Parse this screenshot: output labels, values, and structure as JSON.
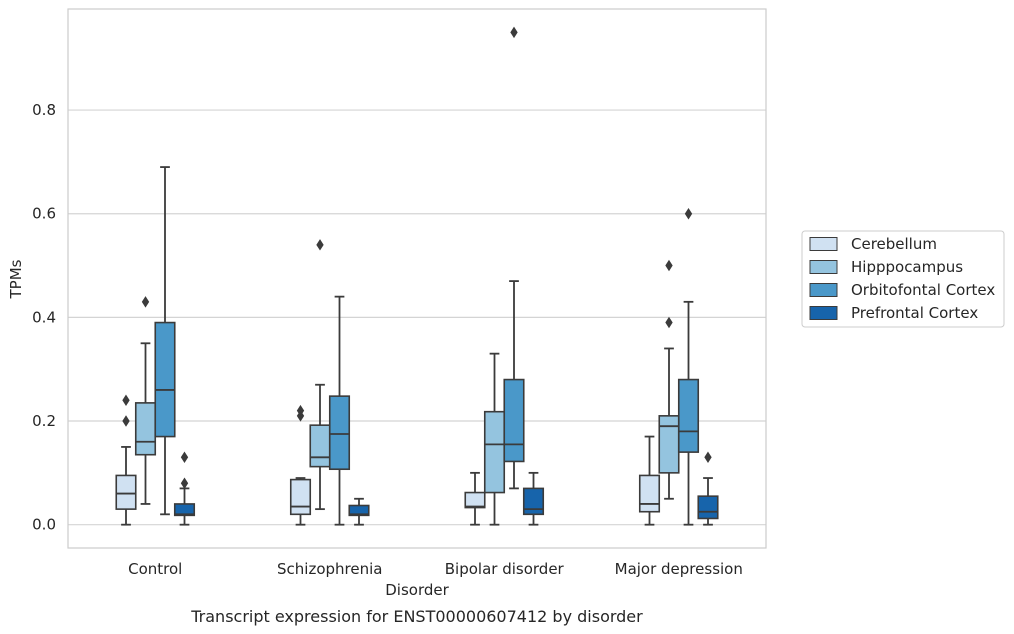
{
  "chart_data": {
    "type": "box",
    "title": "",
    "caption": "Transcript expression for ENST00000607412 by disorder",
    "xlabel": "Disorder",
    "ylabel": "TPMs",
    "ylim": [
      -0.045,
      0.995
    ],
    "yticks": [
      0.0,
      0.2,
      0.4,
      0.6,
      0.8
    ],
    "ytick_labels": [
      "0.0",
      "0.2",
      "0.4",
      "0.6",
      "0.8"
    ],
    "grid": "horizontal",
    "legend_position": "right",
    "categories": [
      "Control",
      "Schizophrenia",
      "Bipolar disorder",
      "Major depression"
    ],
    "series": [
      {
        "name": "Cerebellum",
        "color": "#d0e1f2",
        "boxes": [
          {
            "category": "Control",
            "min": 0.0,
            "q1": 0.03,
            "median": 0.06,
            "q3": 0.095,
            "max": 0.15,
            "outliers": [
              0.2,
              0.24
            ]
          },
          {
            "category": "Schizophrenia",
            "min": 0.0,
            "q1": 0.02,
            "median": 0.035,
            "q3": 0.087,
            "max": 0.09,
            "outliers": [
              0.21,
              0.22
            ]
          },
          {
            "category": "Bipolar disorder",
            "min": 0.0,
            "q1": 0.033,
            "median": 0.035,
            "q3": 0.062,
            "max": 0.1,
            "outliers": []
          },
          {
            "category": "Major depression",
            "min": 0.0,
            "q1": 0.025,
            "median": 0.04,
            "q3": 0.095,
            "max": 0.17,
            "outliers": []
          }
        ]
      },
      {
        "name": "Hipppocampus",
        "color": "#94c4df",
        "boxes": [
          {
            "category": "Control",
            "min": 0.04,
            "q1": 0.135,
            "median": 0.16,
            "q3": 0.235,
            "max": 0.35,
            "outliers": [
              0.43
            ]
          },
          {
            "category": "Schizophrenia",
            "min": 0.03,
            "q1": 0.112,
            "median": 0.13,
            "q3": 0.192,
            "max": 0.27,
            "outliers": [
              0.54
            ]
          },
          {
            "category": "Bipolar disorder",
            "min": 0.0,
            "q1": 0.062,
            "median": 0.155,
            "q3": 0.218,
            "max": 0.33,
            "outliers": []
          },
          {
            "category": "Major depression",
            "min": 0.05,
            "q1": 0.1,
            "median": 0.19,
            "q3": 0.21,
            "max": 0.34,
            "outliers": [
              0.39,
              0.5
            ]
          }
        ]
      },
      {
        "name": "Orbitofontal Cortex",
        "color": "#4a98c9",
        "boxes": [
          {
            "category": "Control",
            "min": 0.02,
            "q1": 0.17,
            "median": 0.26,
            "q3": 0.39,
            "max": 0.69,
            "outliers": []
          },
          {
            "category": "Schizophrenia",
            "min": 0.0,
            "q1": 0.107,
            "median": 0.175,
            "q3": 0.248,
            "max": 0.44,
            "outliers": []
          },
          {
            "category": "Bipolar disorder",
            "min": 0.07,
            "q1": 0.122,
            "median": 0.155,
            "q3": 0.28,
            "max": 0.47,
            "outliers": [
              0.95
            ]
          },
          {
            "category": "Major depression",
            "min": 0.0,
            "q1": 0.14,
            "median": 0.18,
            "q3": 0.28,
            "max": 0.43,
            "outliers": [
              0.6
            ]
          }
        ]
      },
      {
        "name": "Prefrontal Cortex",
        "color": "#1764ab",
        "boxes": [
          {
            "category": "Control",
            "min": 0.0,
            "q1": 0.018,
            "median": 0.02,
            "q3": 0.04,
            "max": 0.07,
            "outliers": [
              0.08,
              0.13
            ]
          },
          {
            "category": "Schizophrenia",
            "min": 0.0,
            "q1": 0.018,
            "median": 0.02,
            "q3": 0.037,
            "max": 0.05,
            "outliers": []
          },
          {
            "category": "Bipolar disorder",
            "min": 0.0,
            "q1": 0.02,
            "median": 0.03,
            "q3": 0.07,
            "max": 0.1,
            "outliers": []
          },
          {
            "category": "Major depression",
            "min": 0.0,
            "q1": 0.012,
            "median": 0.025,
            "q3": 0.055,
            "max": 0.09,
            "outliers": [
              0.13
            ]
          }
        ]
      }
    ]
  }
}
